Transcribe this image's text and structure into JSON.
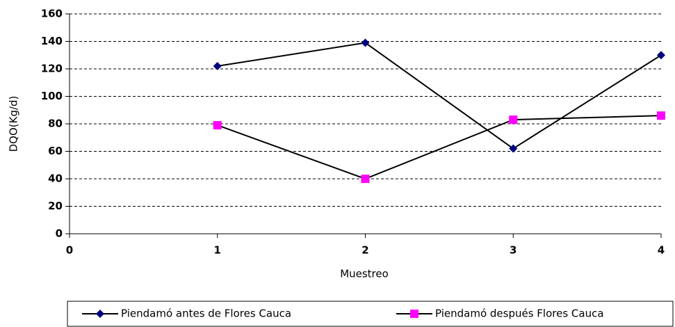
{
  "chart_data": {
    "type": "line",
    "x_label": "Muestreo",
    "y_label": "DQO(Kg/d)",
    "x": [
      1,
      2,
      3,
      4
    ],
    "series": [
      {
        "name": "Piendamó antes de Flores Cauca",
        "color": "#000080",
        "line_color": "#000000",
        "marker": "diamond",
        "values": [
          122,
          139,
          62,
          130
        ]
      },
      {
        "name": "Piendamó después Flores Cauca",
        "color": "#ff00ff",
        "line_color": "#000000",
        "marker": "square",
        "values": [
          79,
          40,
          83,
          86
        ]
      }
    ],
    "xlim": [
      0,
      4
    ],
    "xticks": [
      0,
      1,
      2,
      3,
      4
    ],
    "ylim": [
      0,
      160
    ],
    "yticks": [
      0,
      20,
      40,
      60,
      80,
      100,
      120,
      140,
      160
    ],
    "grid": true,
    "legend": "bottom"
  }
}
